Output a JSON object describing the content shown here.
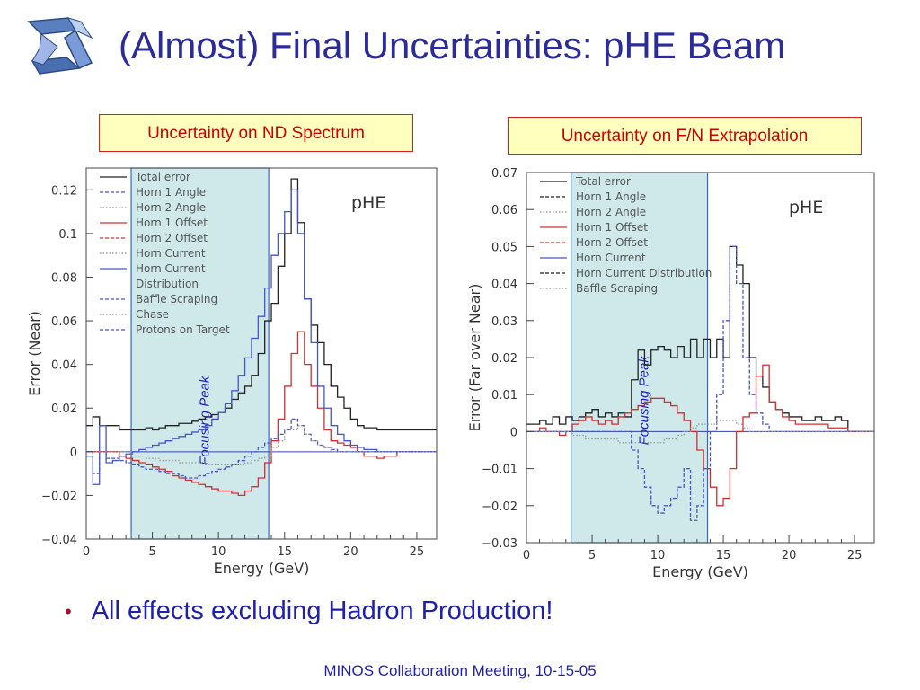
{
  "slide": {
    "title": "(Almost) Final Uncertainties:  pHE Beam",
    "bullet": "All effects excluding Hadron Production!",
    "footer": "MINOS Collaboration Meeting, 10-15-05"
  },
  "colors": {
    "title": "#2b2b9a",
    "caption_border": "#d42020",
    "caption_fill": "#ffffbe",
    "shade": "#cfe9ea",
    "black": "#222222",
    "red": "#d03030",
    "blue": "#4455cc"
  },
  "chart_data": [
    {
      "type": "line",
      "caption": "Uncertainty on ND Spectrum",
      "plot_label": "pHE",
      "xlabel": "Energy (GeV)",
      "ylabel": "Error (Near)",
      "xlim": [
        0,
        26.5
      ],
      "ylim": [
        -0.04,
        0.13
      ],
      "xticks": [
        0,
        5,
        10,
        15,
        20,
        25
      ],
      "yticks": [
        -0.04,
        -0.02,
        0,
        0.02,
        0.04,
        0.06,
        0.08,
        0.1,
        0.12
      ],
      "ytick_labels": [
        "−0.04",
        "−0.02",
        "0",
        "0.02",
        "0.04",
        "0.06",
        "0.08",
        "0.1",
        "0.12"
      ],
      "shaded_region": {
        "x": [
          3.4,
          13.8
        ],
        "label": "Focusing Peak"
      },
      "legend": [
        "Total error",
        "Horn 1 Angle",
        "Horn 2 Angle",
        "Horn 1 Offset",
        "Horn 2 Offset",
        "Horn Current",
        "Horn Current",
        "Distribution",
        "Baffle Scraping",
        "Chase",
        "Protons on Target"
      ],
      "x_edges": [
        0,
        0.5,
        1,
        1.5,
        2,
        2.5,
        3,
        3.5,
        4,
        4.5,
        5,
        5.5,
        6,
        6.5,
        7,
        7.5,
        8,
        8.5,
        9,
        9.5,
        10,
        10.5,
        11,
        11.5,
        12,
        12.5,
        13,
        13.5,
        14,
        14.5,
        15,
        15.5,
        16,
        16.5,
        17,
        17.5,
        18,
        18.5,
        19,
        19.5,
        20,
        20.5,
        21,
        21.5,
        22,
        22.5,
        23,
        23.5,
        24,
        24.5,
        25,
        25.5,
        26,
        26.5
      ],
      "series": [
        {
          "color": "#222222",
          "dash": "solid",
          "values": [
            0.012,
            0.016,
            0.012,
            0.012,
            0.012,
            0.01,
            0.01,
            0.01,
            0.01,
            0.011,
            0.01,
            0.011,
            0.012,
            0.012,
            0.013,
            0.013,
            0.014,
            0.015,
            0.016,
            0.017,
            0.018,
            0.02,
            0.024,
            0.027,
            0.03,
            0.035,
            0.045,
            0.06,
            0.068,
            0.085,
            0.1,
            0.125,
            0.105,
            0.07,
            0.058,
            0.05,
            0.04,
            0.03,
            0.025,
            0.02,
            0.015,
            0.012,
            0.011,
            0.011,
            0.01,
            0.01,
            0.01,
            0.01,
            0.01,
            0.01,
            0.01,
            0.01,
            0.01
          ]
        },
        {
          "color": "#d03030",
          "dash": "solid",
          "values": [
            0.0,
            0.0,
            0.0,
            0.0,
            0.0,
            -0.002,
            -0.003,
            -0.004,
            -0.005,
            -0.006,
            -0.007,
            -0.008,
            -0.009,
            -0.011,
            -0.012,
            -0.013,
            -0.014,
            -0.015,
            -0.016,
            -0.017,
            -0.018,
            -0.018,
            -0.019,
            -0.02,
            -0.018,
            -0.016,
            -0.012,
            -0.005,
            0.005,
            0.015,
            0.03,
            0.045,
            0.055,
            0.04,
            0.03,
            0.02,
            0.01,
            0.005,
            0.004,
            0.003,
            0.002,
            0.0,
            -0.002,
            -0.002,
            -0.003,
            -0.002,
            -0.002,
            0.0,
            0.0,
            0.0,
            0.0,
            0.0,
            0.0
          ]
        },
        {
          "color": "#4455cc",
          "dash": "solid",
          "values": [
            -0.002,
            -0.015,
            0.012,
            -0.005,
            -0.004,
            -0.002,
            -0.001,
            0.0,
            0.001,
            0.002,
            0.003,
            0.004,
            0.005,
            0.006,
            0.007,
            0.008,
            0.009,
            0.01,
            0.012,
            0.015,
            0.018,
            0.022,
            0.028,
            0.035,
            0.043,
            0.052,
            0.062,
            0.075,
            0.09,
            0.1,
            0.11,
            0.12,
            0.1,
            0.07,
            0.05,
            0.03,
            0.02,
            0.012,
            0.008,
            0.005,
            0.003,
            0.002,
            0.001,
            0.001,
            0.0,
            0.0,
            0.0,
            0.0,
            0.0,
            0.0,
            0.0,
            0.0,
            0.0
          ]
        },
        {
          "color": "#4455cc",
          "dash": "dashed",
          "values": [
            0.0,
            -0.01,
            0.0,
            -0.003,
            -0.003,
            -0.004,
            -0.005,
            -0.006,
            -0.007,
            -0.008,
            -0.008,
            -0.009,
            -0.01,
            -0.01,
            -0.011,
            -0.012,
            -0.012,
            -0.011,
            -0.01,
            -0.009,
            -0.008,
            -0.007,
            -0.006,
            -0.004,
            -0.002,
            0.0,
            0.002,
            0.004,
            0.006,
            0.008,
            0.01,
            0.015,
            0.012,
            0.008,
            0.005,
            0.003,
            0.002,
            0.001,
            0.0,
            0.0,
            0.0,
            0.0,
            0.0,
            0.0,
            0.0,
            0.0,
            0.0,
            0.0,
            0.0,
            0.0,
            0.0,
            0.0,
            0.0
          ]
        },
        {
          "color": "#999999",
          "dash": "dotted",
          "values": [
            0.0,
            0.0,
            0.0,
            0.0,
            0.0,
            0.0,
            0.0,
            -0.002,
            -0.002,
            -0.003,
            -0.003,
            -0.004,
            -0.004,
            -0.004,
            -0.005,
            -0.005,
            -0.005,
            -0.005,
            -0.006,
            -0.006,
            -0.006,
            -0.006,
            -0.006,
            -0.006,
            -0.005,
            -0.004,
            -0.003,
            -0.002,
            0.002,
            0.005,
            0.01,
            0.01,
            0.012,
            0.008,
            0.005,
            0.003,
            0.002,
            0.0,
            0.0,
            0.0,
            0.0,
            0.0,
            0.0,
            0.0,
            0.0,
            0.0,
            0.0,
            0.0,
            0.0,
            0.0,
            0.0,
            0.0,
            0.0
          ]
        }
      ]
    },
    {
      "type": "line",
      "caption": "Uncertainty on F/N Extrapolation",
      "plot_label": "pHE",
      "xlabel": "Energy (GeV)",
      "ylabel": "Error (Far over Near)",
      "xlim": [
        0,
        26.5
      ],
      "ylim": [
        -0.03,
        0.07
      ],
      "xticks": [
        0,
        5,
        10,
        15,
        20,
        25
      ],
      "yticks": [
        -0.03,
        -0.02,
        -0.01,
        0,
        0.01,
        0.02,
        0.03,
        0.04,
        0.05,
        0.06,
        0.07
      ],
      "ytick_labels": [
        "−0.03",
        "−0.02",
        "−0.01",
        "0",
        "0.01",
        "0.02",
        "0.03",
        "0.04",
        "0.05",
        "0.06",
        "0.07"
      ],
      "shaded_region": {
        "x": [
          3.4,
          13.8
        ],
        "label": "Focusing Peak"
      },
      "legend": [
        "Total error",
        "Horn 1 Angle",
        "Horn 2 Angle",
        "Horn 1 Offset",
        "Horn 2 Offset",
        "Horn Current",
        "Horn Current Distribution",
        "Baffle Scraping"
      ],
      "x_edges": [
        0,
        0.5,
        1,
        1.5,
        2,
        2.5,
        3,
        3.5,
        4,
        4.5,
        5,
        5.5,
        6,
        6.5,
        7,
        7.5,
        8,
        8.5,
        9,
        9.5,
        10,
        10.5,
        11,
        11.5,
        12,
        12.5,
        13,
        13.5,
        14,
        14.5,
        15,
        15.5,
        16,
        16.5,
        17,
        17.5,
        18,
        18.5,
        19,
        19.5,
        20,
        20.5,
        21,
        21.5,
        22,
        22.5,
        23,
        23.5,
        24,
        24.5,
        25,
        25.5,
        26,
        26.5
      ],
      "series": [
        {
          "color": "#222222",
          "dash": "solid",
          "values": [
            0.002,
            0.002,
            0.003,
            0.002,
            0.004,
            0.002,
            0.004,
            0.003,
            0.004,
            0.005,
            0.006,
            0.004,
            0.005,
            0.004,
            0.005,
            0.004,
            0.014,
            0.022,
            0.018,
            0.022,
            0.023,
            0.022,
            0.02,
            0.023,
            0.02,
            0.025,
            0.02,
            0.025,
            0.02,
            0.025,
            0.02,
            0.05,
            0.045,
            0.04,
            0.02,
            0.015,
            0.012,
            0.008,
            0.006,
            0.005,
            0.004,
            0.004,
            0.003,
            0.003,
            0.004,
            0.003,
            0.003,
            0.004,
            0.003,
            0.0,
            0.0,
            0.0,
            0.0
          ]
        },
        {
          "color": "#d03030",
          "dash": "solid",
          "values": [
            0.0,
            0.0,
            0.001,
            0.0,
            0.0,
            -0.001,
            0.0,
            0.002,
            0.003,
            0.004,
            0.003,
            0.002,
            0.003,
            0.002,
            0.004,
            0.005,
            0.006,
            0.007,
            0.008,
            0.009,
            0.009,
            0.008,
            0.007,
            0.005,
            0.003,
            0.0,
            -0.005,
            -0.01,
            -0.015,
            -0.02,
            -0.018,
            -0.01,
            0.0,
            0.004,
            0.005,
            0.015,
            0.018,
            0.008,
            0.006,
            0.004,
            0.003,
            0.002,
            0.002,
            0.002,
            0.002,
            0.002,
            0.001,
            0.001,
            0.001,
            0.0,
            0.0,
            0.0,
            0.0
          ]
        },
        {
          "color": "#4455cc",
          "dash": "dashed",
          "values": [
            0.0,
            0.0,
            0.0,
            0.0,
            0.0,
            0.0,
            0.0,
            0.0,
            0.0,
            0.0,
            0.0,
            0.0,
            0.0,
            0.0,
            0.0,
            0.0,
            -0.005,
            -0.01,
            -0.015,
            -0.02,
            -0.022,
            -0.02,
            -0.018,
            -0.015,
            -0.01,
            -0.024,
            -0.02,
            -0.01,
            0.0,
            0.01,
            0.03,
            0.05,
            0.04,
            0.02,
            0.01,
            0.005,
            0.002,
            0.0,
            0.0,
            0.0,
            0.0,
            0.0,
            0.0,
            0.0,
            0.0,
            0.0,
            0.0,
            0.0,
            0.0,
            0.0,
            0.0,
            0.0,
            0.0
          ]
        },
        {
          "color": "#999999",
          "dash": "dotted",
          "values": [
            0.0,
            0.0,
            0.0,
            0.0,
            0.0,
            0.0,
            0.0,
            -0.001,
            -0.001,
            -0.002,
            -0.002,
            -0.002,
            -0.002,
            -0.002,
            -0.003,
            -0.003,
            -0.003,
            -0.003,
            -0.003,
            -0.003,
            -0.003,
            -0.002,
            -0.002,
            -0.001,
            0.0,
            0.001,
            0.002,
            0.002,
            0.002,
            0.003,
            0.003,
            0.003,
            0.002,
            0.001,
            0.0,
            0.0,
            0.0,
            0.0,
            0.0,
            0.0,
            0.0,
            0.0,
            0.0,
            0.0,
            0.0,
            0.0,
            0.0,
            0.0,
            0.0,
            0.0,
            0.0,
            0.0,
            0.0
          ]
        }
      ]
    }
  ]
}
